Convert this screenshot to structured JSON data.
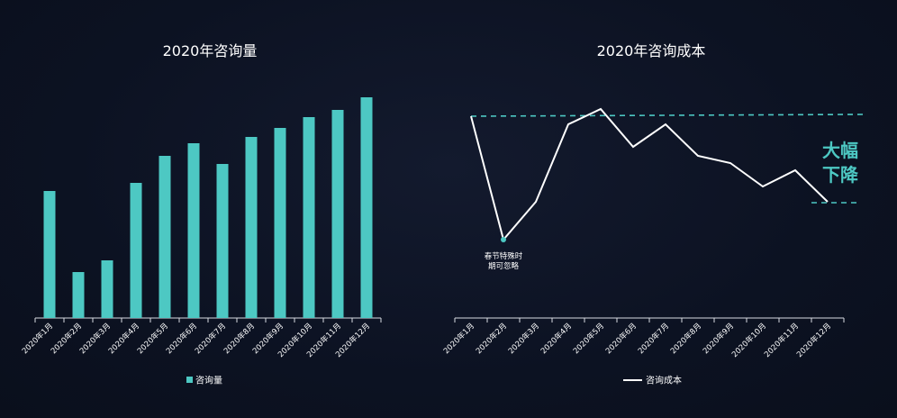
{
  "chart_data": [
    {
      "type": "bar",
      "title": "2020年咨询量",
      "categories": [
        "2020年1月",
        "2020年2月",
        "2020年3月",
        "2020年4月",
        "2020年5月",
        "2020年6月",
        "2020年7月",
        "2020年8月",
        "2020年9月",
        "2020年10月",
        "2020年11月",
        "2020年12月"
      ],
      "series": [
        {
          "name": "咨询量",
          "values": [
            141,
            51,
            64,
            150,
            180,
            194,
            171,
            201,
            211,
            223,
            231,
            245
          ]
        }
      ],
      "ylim": [
        0,
        250
      ],
      "grid": false,
      "legend": "bottom",
      "colors": {
        "bar": "#4dc8c3"
      }
    },
    {
      "type": "line",
      "title": "2020年咨询成本",
      "categories": [
        "2020年1月",
        "2020年2月",
        "2020年3月",
        "2020年4月",
        "2020年5月",
        "2020年6月",
        "2020年7月",
        "2020年8月",
        "2020年9月",
        "2020年10月",
        "2020年11月",
        "2020年12月"
      ],
      "series": [
        {
          "name": "咨询成本",
          "values": [
            224,
            87,
            129,
            215,
            232,
            190,
            215,
            180,
            172,
            146,
            164,
            129
          ]
        }
      ],
      "ylim": [
        0,
        250
      ],
      "grid": false,
      "legend": "bottom",
      "annotations": {
        "point_note": [
          "春节特殊时",
          "期可忽略"
        ],
        "drop_label": [
          "大幅",
          "下降"
        ],
        "high_line_value": 226,
        "low_line_value": 128
      },
      "colors": {
        "line": "#ffffff",
        "dashed": "#4dc8c3",
        "label": "#4dc8c3"
      }
    }
  ]
}
